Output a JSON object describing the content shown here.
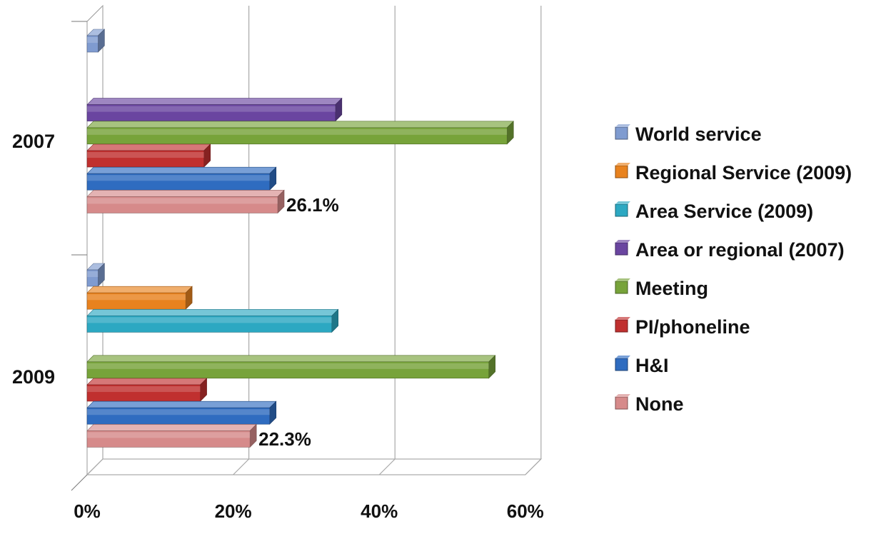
{
  "chart_data": {
    "type": "bar",
    "orientation": "horizontal",
    "style": "3d",
    "categories": [
      "2007",
      "2009"
    ],
    "series": [
      {
        "name": "World service",
        "color": "#7F9BD0",
        "values": [
          1.5,
          1.5
        ]
      },
      {
        "name": "Regional Service (2009)",
        "color": "#E8821E",
        "values": [
          null,
          13.5
        ]
      },
      {
        "name": "Area Service (2009)",
        "color": "#2CA8C2",
        "values": [
          null,
          33.5
        ]
      },
      {
        "name": "Area or regional (2007)",
        "color": "#6A45A0",
        "values": [
          34,
          null
        ]
      },
      {
        "name": "Meeting",
        "color": "#77A33A",
        "values": [
          57.5,
          55
        ]
      },
      {
        "name": "PI/phoneline",
        "color": "#C0302F",
        "values": [
          16,
          15.5
        ]
      },
      {
        "name": "H&I",
        "color": "#2F6CC0",
        "values": [
          25,
          25
        ]
      },
      {
        "name": "None",
        "color": "#D68A8A",
        "values": [
          26.1,
          22.3
        ]
      }
    ],
    "data_labels": [
      {
        "category": "2007",
        "series": "None",
        "text": "26.1%"
      },
      {
        "category": "2009",
        "series": "None",
        "text": "22.3%"
      }
    ],
    "xlim": [
      0,
      60
    ],
    "xticks": [
      "0%",
      "20%",
      "40%",
      "60%"
    ],
    "grid": true,
    "legend_position": "right"
  }
}
